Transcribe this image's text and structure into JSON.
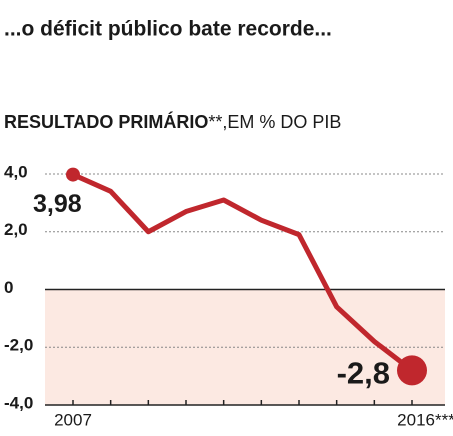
{
  "chart_data": {
    "type": "line",
    "title": "...o déficit público bate recorde...",
    "subtitle": [
      "RESULTADO PRIMÁRIO",
      "**,EM % DO PIB"
    ],
    "categories": [
      "2007",
      null,
      null,
      null,
      null,
      null,
      null,
      null,
      null,
      "2016***"
    ],
    "series": [
      {
        "color": "#c0272d",
        "values": [
          3.98,
          3.4,
          2.0,
          2.7,
          3.1,
          2.4,
          1.9,
          -0.6,
          -1.8,
          -2.8
        ],
        "value_labels": [
          "3,98",
          null,
          null,
          null,
          null,
          null,
          null,
          null,
          null,
          "-2,8"
        ]
      }
    ],
    "ylim": [
      -4,
      4
    ],
    "yticks": [
      {
        "value": 4,
        "label": "4,0"
      },
      {
        "value": 2,
        "label": "2,0"
      },
      0,
      {
        "value": -2,
        "label": "-2,0"
      },
      {
        "value": -4,
        "label": "-4,0"
      }
    ],
    "negative_fill": "#fce9e2",
    "grid": true
  }
}
